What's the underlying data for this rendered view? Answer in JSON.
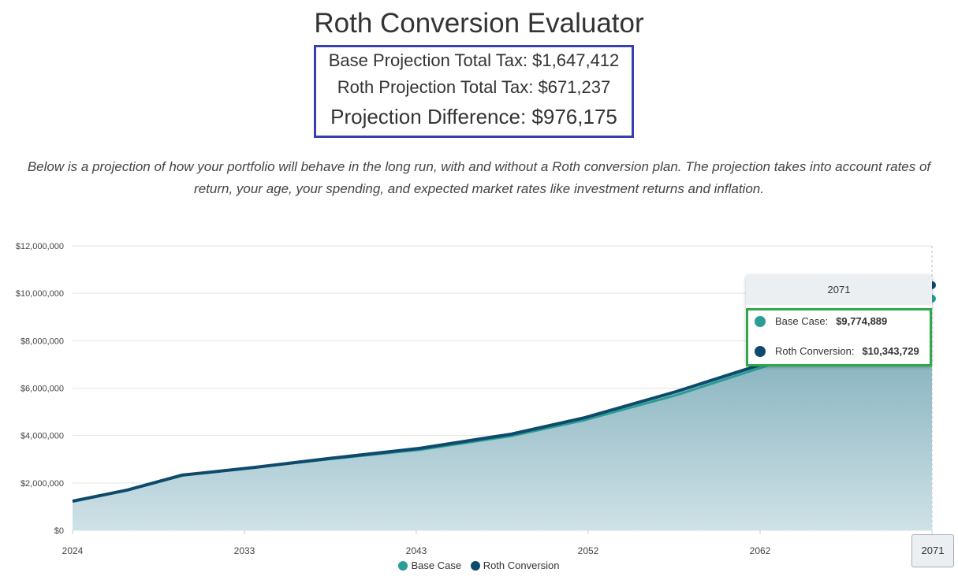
{
  "title": "Roth Conversion Evaluator",
  "summary": {
    "base_total_tax": "Base Projection Total Tax: $1,647,412",
    "roth_total_tax": "Roth Projection Total Tax: $671,237",
    "difference": "Projection Difference: $976,175"
  },
  "description": "Below is a projection of how your portfolio will behave in the long run, with and without a Roth conversion plan. The projection takes into account rates of return, your age, your spending, and expected market rates like investment returns and inflation.",
  "chart_data": {
    "type": "area",
    "x": [
      2024,
      2027,
      2030,
      2034,
      2038,
      2043,
      2048,
      2052,
      2057,
      2062,
      2066,
      2071
    ],
    "series": [
      {
        "name": "Base Case",
        "color": "#2a9d96",
        "values": [
          1230000,
          1700000,
          2330000,
          2660000,
          3000000,
          3400000,
          3980000,
          4650000,
          5700000,
          6950000,
          8200000,
          9774889
        ]
      },
      {
        "name": "Roth Conversion",
        "color": "#0d4a6b",
        "values": [
          1230000,
          1700000,
          2330000,
          2660000,
          3030000,
          3460000,
          4060000,
          4750000,
          5850000,
          7080000,
          8500000,
          10343729
        ]
      }
    ],
    "xticks": [
      "2024",
      "2033",
      "2043",
      "2052",
      "2062",
      "2071"
    ],
    "yticks": [
      "$0",
      "$2,000,000",
      "$4,000,000",
      "$6,000,000",
      "$8,000,000",
      "$10,000,000",
      "$12,000,000"
    ],
    "ylim": [
      0,
      12000000
    ],
    "xlim": [
      2024,
      2071
    ],
    "grid": true,
    "legend": "bottom",
    "tooltip": {
      "header": "2071",
      "rows": [
        {
          "label": "Base Case:",
          "value": "$9,774,889",
          "color": "#2a9d96"
        },
        {
          "label": "Roth Conversion:",
          "value": "$10,343,729",
          "color": "#0d4a6b"
        }
      ]
    },
    "hover_label": "2071"
  }
}
